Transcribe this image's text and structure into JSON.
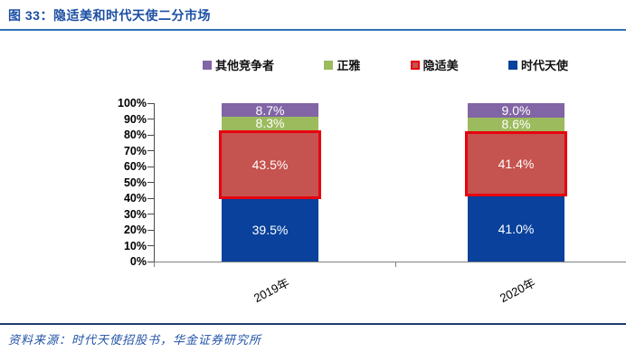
{
  "header": {
    "title": "图 33：隐适美和时代天使二分市场"
  },
  "chart_data": {
    "type": "bar",
    "stacked": true,
    "title": "隐适美和时代天使二分市场",
    "categories": [
      "2019年",
      "2020年"
    ],
    "series": [
      {
        "key": "angelalign",
        "name": "时代天使",
        "values": [
          39.5,
          41.0
        ],
        "labels": [
          "39.5%",
          "41.0%"
        ],
        "color": "#09419c"
      },
      {
        "key": "invisalign",
        "name": "隐适美",
        "values": [
          43.5,
          41.4
        ],
        "labels": [
          "43.5%",
          "41.4%"
        ],
        "color": "#c5534f",
        "border_color": "#e8000e"
      },
      {
        "key": "smartee",
        "name": "正雅",
        "values": [
          8.3,
          8.6
        ],
        "labels": [
          "8.3%",
          "8.6%"
        ],
        "color": "#9cbb5d"
      },
      {
        "key": "others",
        "name": "其他竞争者",
        "values": [
          8.7,
          9.0
        ],
        "labels": [
          "8.7%",
          "9.0%"
        ],
        "color": "#8165a5"
      }
    ],
    "legend_order": [
      "其他竞争者",
      "正雅",
      "隐适美",
      "时代天使"
    ],
    "legend_position": "top",
    "ylim": [
      0,
      100
    ],
    "ytick_step": 10,
    "yticks": [
      "0%",
      "10%",
      "20%",
      "30%",
      "40%",
      "50%",
      "60%",
      "70%",
      "80%",
      "90%",
      "100%"
    ],
    "grid": false,
    "data_labels_color": "#ffffff"
  },
  "accent_colors": {
    "title_text": "#1c4fa3",
    "title_rule": "#2e74b5",
    "footer_rule": "#1d3a6e",
    "source_text": "#2253a8"
  },
  "footer": {
    "source": "资料来源：时代天使招股书，华金证券研究所"
  }
}
